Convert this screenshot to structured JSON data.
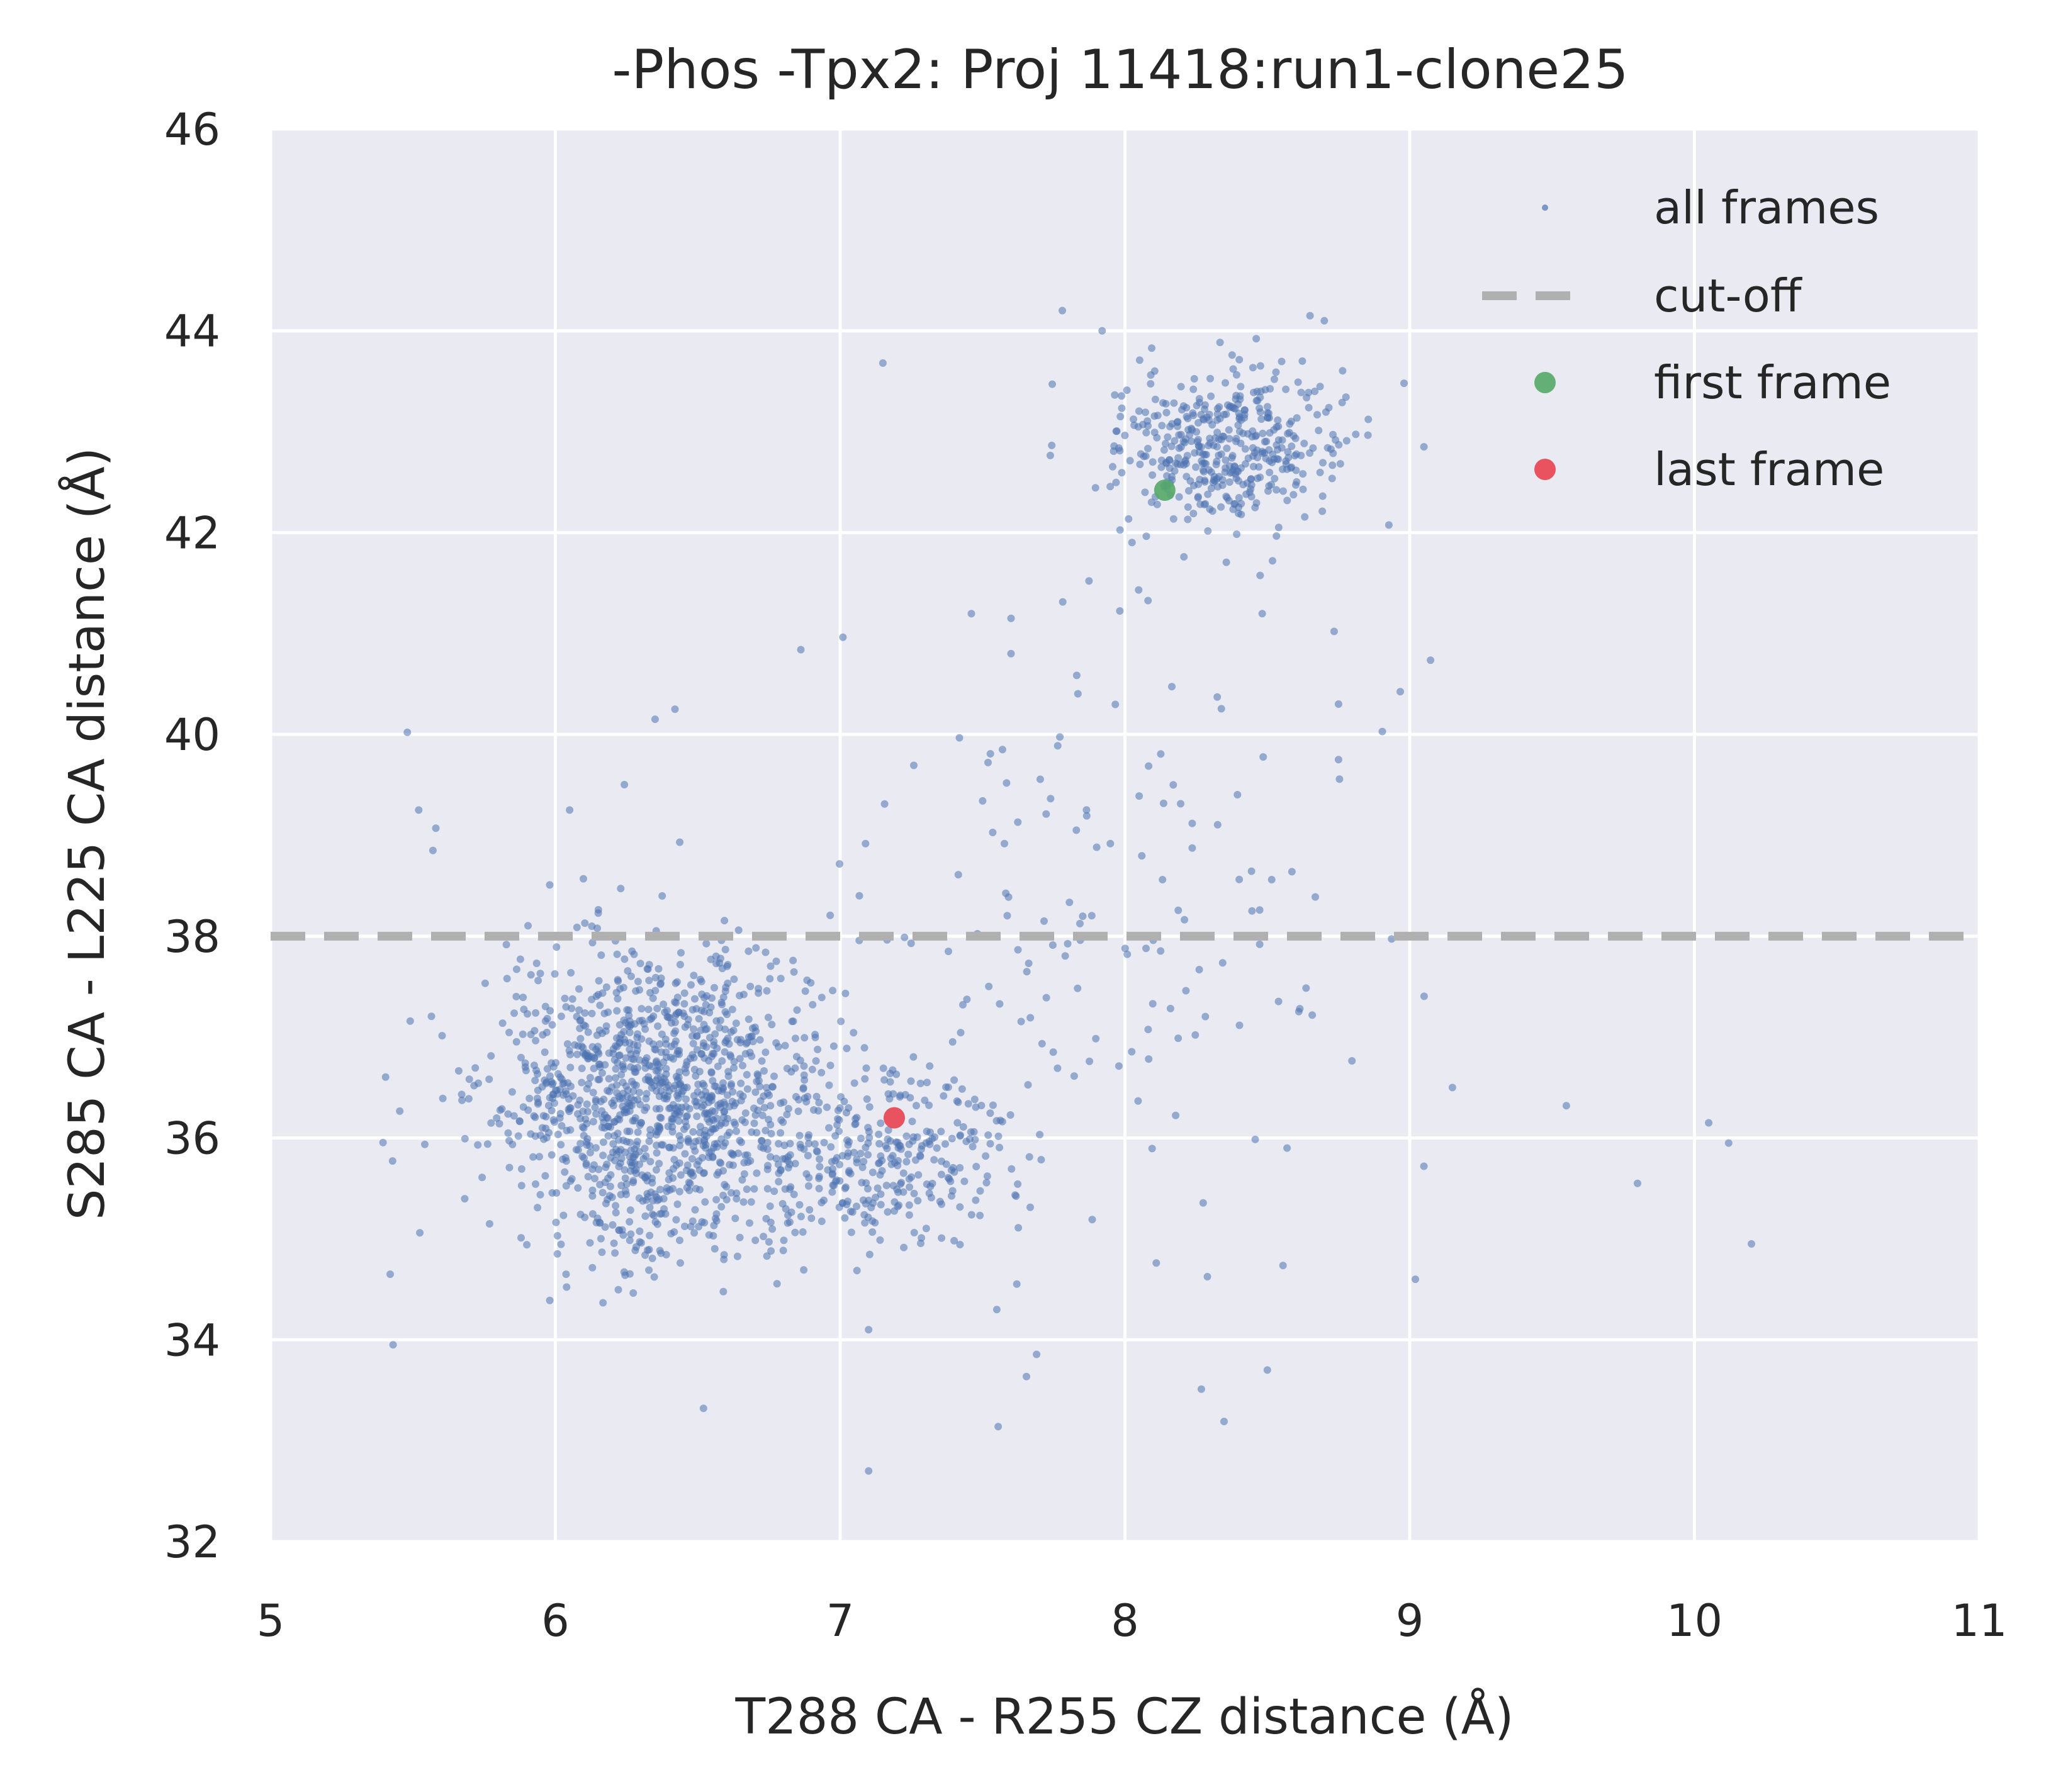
{
  "chart_data": {
    "type": "scatter",
    "title": "-Phos -Tpx2: Proj 11418:run1-clone25",
    "xlabel": "T288 CA - R255 CZ distance (Å)",
    "ylabel": "S285 CA - L225 CA distance (Å)",
    "xlim": [
      5,
      11
    ],
    "ylim": [
      32,
      46
    ],
    "x_ticks": [
      "5",
      "6",
      "7",
      "8",
      "9",
      "10",
      "11"
    ],
    "y_ticks": [
      "32",
      "34",
      "36",
      "38",
      "40",
      "42",
      "44",
      "46"
    ],
    "grid": true,
    "legend_position": "top-right",
    "colors": {
      "background": "#eaeaf2",
      "grid": "#ffffff",
      "all_frames": "#4c72b0",
      "cutoff": "#b0b0b0",
      "first_frame": "#55a868",
      "last_frame": "#e8424f"
    },
    "series": [
      {
        "name": "all frames",
        "kind": "points",
        "clusters": [
          {
            "center": [
              6.35,
              36.35
            ],
            "spread": [
              0.28,
              0.75
            ],
            "count": 1250
          },
          {
            "center": [
              7.2,
              35.8
            ],
            "spread": [
              0.22,
              0.45
            ],
            "count": 260
          },
          {
            "center": [
              8.35,
              42.85
            ],
            "spread": [
              0.2,
              0.4
            ],
            "count": 420
          },
          {
            "center": [
              7.9,
              38.0
            ],
            "spread": [
              0.45,
              2.0
            ],
            "count": 170
          }
        ],
        "outliers": [
          [
            5.48,
            40.02
          ],
          [
            5.52,
            39.25
          ],
          [
            5.58,
            39.07
          ],
          [
            5.57,
            38.85
          ],
          [
            5.42,
            34.65
          ],
          [
            5.43,
            33.95
          ],
          [
            6.05,
            39.25
          ],
          [
            6.35,
            40.15
          ],
          [
            6.42,
            40.25
          ],
          [
            6.52,
            33.32
          ],
          [
            7.1,
            32.7
          ],
          [
            7.15,
            43.68
          ],
          [
            7.78,
            44.2
          ],
          [
            7.92,
            44.0
          ],
          [
            8.65,
            44.15
          ],
          [
            8.7,
            44.1
          ],
          [
            8.98,
            43.48
          ],
          [
            9.05,
            42.85
          ],
          [
            9.15,
            36.5
          ],
          [
            9.05,
            35.72
          ],
          [
            9.55,
            36.32
          ],
          [
            9.8,
            35.55
          ],
          [
            10.05,
            36.15
          ],
          [
            10.12,
            35.95
          ],
          [
            10.2,
            34.95
          ],
          [
            9.02,
            34.6
          ],
          [
            8.5,
            33.7
          ],
          [
            7.6,
            40.8
          ],
          [
            7.6,
            41.15
          ],
          [
            7.57,
            39.85
          ],
          [
            8.75,
            40.3
          ],
          [
            8.75,
            39.75
          ],
          [
            7.55,
            34.3
          ],
          [
            7.1,
            34.1
          ]
        ]
      },
      {
        "name": "cut-off",
        "kind": "hline",
        "y": 38
      },
      {
        "name": "first frame",
        "kind": "marker",
        "x": 8.14,
        "y": 42.42
      },
      {
        "name": "last frame",
        "kind": "marker",
        "x": 7.19,
        "y": 36.2
      }
    ]
  }
}
